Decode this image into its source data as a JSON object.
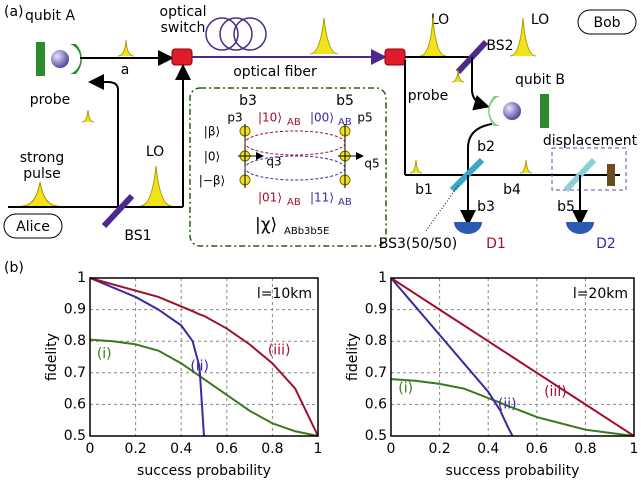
{
  "panel_a": {
    "label": "(a)",
    "qubit_a": "qubit A",
    "switch_1": "optical",
    "switch_2": "switch",
    "mode_a": "a",
    "probe_a": "probe",
    "strong_1": "strong",
    "strong_2": "pulse",
    "lo_alice": "LO",
    "alice": "Alice",
    "bs1": "BS1",
    "fiber": "optical fiber",
    "lo_bob_1": "LO",
    "lo_bob_2": "LO",
    "bs2": "BS2",
    "bob": "Bob",
    "probe_b": "probe",
    "qubit_b": "qubit B",
    "b2": "b2",
    "displacement": "displacement",
    "b1": "b1",
    "b4": "b4",
    "b3": "b3",
    "b5": "b5",
    "bs3": "BS3(50/50)",
    "d1": "D1",
    "d2": "D2",
    "inset": {
      "b3": "b3",
      "b5": "b5",
      "p3": "p3",
      "p5": "p5",
      "beta": "|β⟩",
      "zero": "|0⟩",
      "mbeta": "|−β⟩",
      "q3": "q3",
      "q5": "q5",
      "k10": "|10⟩",
      "k00": "|00⟩",
      "k01": "|01⟩",
      "k11": "|11⟩",
      "sub": "AB",
      "chi": "|χ⟩",
      "chi_sub": "ABb3b5E"
    }
  },
  "panel_b_label": "(b)",
  "chart_data": [
    {
      "type": "line",
      "annotation": "l=10km",
      "xlabel": "success probability",
      "ylabel": "fidelity",
      "x": [
        0,
        0.1,
        0.2,
        0.3,
        0.4,
        0.45,
        0.48,
        0.5,
        0.6,
        0.7,
        0.8,
        0.9,
        1.0
      ],
      "series": [
        {
          "name": "(i)",
          "color": "#3a7a1f",
          "values": [
            0.805,
            0.8,
            0.79,
            0.77,
            0.73,
            0.705,
            0.69,
            0.68,
            0.63,
            0.58,
            0.54,
            0.515,
            0.5
          ]
        },
        {
          "name": "(ii)",
          "color": "#3b2a9c",
          "values": [
            1,
            0.97,
            0.94,
            0.9,
            0.85,
            0.8,
            0.72,
            0.5,
            null,
            null,
            null,
            null,
            null
          ]
        },
        {
          "name": "(iii)",
          "color": "#a0102c",
          "values": [
            1,
            0.98,
            0.96,
            0.94,
            0.91,
            0.895,
            0.885,
            0.88,
            0.84,
            0.79,
            0.73,
            0.65,
            0.5
          ]
        }
      ],
      "xlim": [
        0,
        1
      ],
      "ylim": [
        0.5,
        1
      ],
      "xticks": [
        0,
        0.2,
        0.4,
        0.6,
        0.8,
        1
      ],
      "yticks": [
        0.5,
        0.6,
        0.7,
        0.8,
        0.9,
        1
      ],
      "grid": true
    },
    {
      "type": "line",
      "annotation": "l=20km",
      "xlabel": "success probability",
      "ylabel": "fidelity",
      "x": [
        0,
        0.1,
        0.2,
        0.3,
        0.4,
        0.45,
        0.48,
        0.5,
        0.6,
        0.7,
        0.8,
        0.9,
        1.0
      ],
      "series": [
        {
          "name": "(i)",
          "color": "#3a7a1f",
          "values": [
            0.68,
            0.675,
            0.665,
            0.65,
            0.62,
            0.605,
            0.595,
            0.59,
            0.56,
            0.54,
            0.52,
            0.51,
            0.5
          ]
        },
        {
          "name": "(ii)",
          "color": "#3b2a9c",
          "values": [
            1,
            0.91,
            0.82,
            0.73,
            0.64,
            0.58,
            0.53,
            0.5,
            null,
            null,
            null,
            null,
            null
          ]
        },
        {
          "name": "(iii)",
          "color": "#a0102c",
          "values": [
            1,
            0.95,
            0.9,
            0.85,
            0.8,
            0.775,
            0.76,
            0.75,
            0.7,
            0.65,
            0.6,
            0.55,
            0.5
          ]
        }
      ],
      "xlim": [
        0,
        1
      ],
      "ylim": [
        0.5,
        1
      ],
      "xticks": [
        0,
        0.2,
        0.4,
        0.6,
        0.8,
        1
      ],
      "yticks": [
        0.5,
        0.6,
        0.7,
        0.8,
        0.9,
        1
      ],
      "grid": true
    }
  ]
}
